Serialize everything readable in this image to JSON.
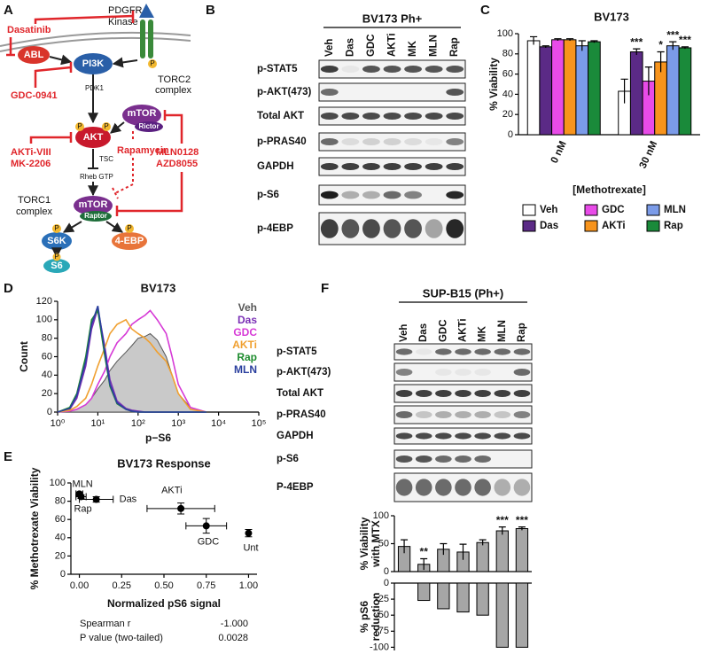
{
  "panel_labels": [
    "A",
    "B",
    "C",
    "D",
    "E",
    "F"
  ],
  "pathway": {
    "pdgfr": "PDGFR",
    "kinase": "Kinase",
    "dasatinib": "Dasatinib",
    "abl": "ABL",
    "pi3k": "PI3K",
    "gdc": "GDC-0941",
    "pdk1": "PDK1",
    "torc2": "TORC2",
    "torc2_complex": "complex",
    "mtor": "mTOR",
    "rictor": "Rictor",
    "akt": "AKT",
    "akti": "AKTi-VIII",
    "mk": "MK-2206",
    "tsc": "TSC",
    "rheb": "Rheb GTP",
    "rapamycin": "Rapamycin",
    "mln": "MLN0128",
    "azd": "AZD8055",
    "torc1": "TORC1",
    "torc1_complex": "complex",
    "raptor": "Raptor",
    "s6k": "S6K",
    "ebp": "4-EBP",
    "s6": "S6",
    "p": "P"
  },
  "blot_b": {
    "title": "BV173 Ph+",
    "lanes": [
      "Veh",
      "Das",
      "GDC",
      "AKTi",
      "MK",
      "MLN",
      "Rap"
    ],
    "rows": [
      "p-STAT5",
      "p-AKT(473)",
      "Total AKT",
      "p-PRAS40",
      "GAPDH",
      "p-S6",
      "p-4EBP"
    ]
  },
  "blot_f": {
    "title": "SUP-B15 (Ph+)",
    "lanes": [
      "Veh",
      "Das",
      "GDC",
      "AKTi",
      "MK",
      "MLN",
      "Rap"
    ],
    "rows": [
      "p-STAT5",
      "p-AKT(473)",
      "Total AKT",
      "p-PRAS40",
      "GAPDH",
      "p-S6",
      "P-4EBP"
    ]
  },
  "chart_data": [
    {
      "type": "bar",
      "title": "BV173",
      "y_label": "% Viability",
      "x_label": "[Methotrexate]",
      "categories": [
        "0 nM",
        "30 nM"
      ],
      "ylim": [
        0,
        100
      ],
      "yticks": [
        0,
        20,
        40,
        60,
        80,
        100
      ],
      "series": [
        {
          "name": "Veh",
          "color": "#ffffff",
          "values": [
            93,
            43
          ],
          "errors": [
            4,
            12
          ],
          "stars": [
            null,
            null
          ]
        },
        {
          "name": "Das",
          "color": "#5b2a86",
          "values": [
            87,
            82
          ],
          "errors": [
            1,
            3
          ],
          "stars": [
            null,
            "***"
          ]
        },
        {
          "name": "GDC",
          "color": "#e84be8",
          "values": [
            94,
            53
          ],
          "errors": [
            1,
            14
          ],
          "stars": [
            null,
            null
          ]
        },
        {
          "name": "AKTi",
          "color": "#f7941d",
          "values": [
            94,
            72
          ],
          "errors": [
            1,
            10
          ],
          "stars": [
            null,
            "*"
          ]
        },
        {
          "name": "MLN",
          "color": "#7b9be8",
          "values": [
            88,
            88
          ],
          "errors": [
            5,
            4
          ],
          "stars": [
            null,
            "***"
          ]
        },
        {
          "name": "Rap",
          "color": "#1a8a3a",
          "values": [
            92,
            86
          ],
          "errors": [
            1,
            1
          ],
          "stars": [
            null,
            "***"
          ]
        }
      ]
    },
    {
      "type": "histogram-overlay",
      "title": "BV173",
      "x_label": "p−S6",
      "y_label": "Count",
      "xscale": "log",
      "x": [
        1,
        2,
        3,
        5,
        7,
        10,
        15,
        20,
        30,
        50,
        70,
        100,
        150,
        200,
        300,
        500,
        700,
        1000,
        2000,
        5000
      ],
      "xlim": [
        1,
        100000
      ],
      "xticks": [
        {
          "value": 1,
          "label": "10⁰"
        },
        {
          "value": 10,
          "label": "10¹"
        },
        {
          "value": 100,
          "label": "10²"
        },
        {
          "value": 1000,
          "label": "10³"
        },
        {
          "value": 10000,
          "label": "10⁴"
        },
        {
          "value": 100000,
          "label": "10⁵"
        }
      ],
      "ylim": [
        0,
        120
      ],
      "yticks": [
        0,
        20,
        40,
        60,
        80,
        100,
        120
      ],
      "series": [
        {
          "name": "Veh",
          "color": "#555555",
          "filled": true,
          "values": [
            0,
            1,
            3,
            8,
            15,
            25,
            35,
            45,
            55,
            65,
            72,
            80,
            82,
            85,
            78,
            60,
            40,
            20,
            5,
            0
          ]
        },
        {
          "name": "Das",
          "color": "#7a2fb5",
          "values": [
            0,
            3,
            15,
            50,
            90,
            112,
            70,
            35,
            12,
            4,
            2,
            1,
            0,
            0,
            0,
            0,
            0,
            0,
            0,
            0
          ]
        },
        {
          "name": "GDC",
          "color": "#d63ad6",
          "values": [
            0,
            1,
            3,
            8,
            15,
            30,
            45,
            60,
            75,
            85,
            95,
            100,
            105,
            110,
            100,
            85,
            60,
            30,
            5,
            0
          ]
        },
        {
          "name": "AKTi",
          "color": "#f0a030",
          "values": [
            0,
            2,
            6,
            15,
            30,
            50,
            70,
            85,
            95,
            100,
            90,
            85,
            80,
            75,
            65,
            55,
            40,
            20,
            3,
            0
          ]
        },
        {
          "name": "Rap",
          "color": "#1e8c2e",
          "values": [
            0,
            5,
            20,
            60,
            100,
            110,
            60,
            28,
            9,
            3,
            1,
            0,
            0,
            0,
            0,
            0,
            0,
            0,
            0,
            0
          ]
        },
        {
          "name": "MLN",
          "color": "#2a3f9e",
          "values": [
            0,
            4,
            18,
            55,
            95,
            115,
            65,
            30,
            10,
            3,
            1,
            0,
            0,
            0,
            0,
            0,
            0,
            0,
            0,
            0
          ]
        }
      ]
    },
    {
      "type": "scatter",
      "title": "BV173 Response",
      "x_label": "Normalized pS6 signal",
      "y_label": "% Methotrexate Viability",
      "xlim": [
        -0.05,
        1.05
      ],
      "xticks": [
        {
          "value": 0,
          "label": "0.00"
        },
        {
          "value": 0.25,
          "label": "0.25"
        },
        {
          "value": 0.5,
          "label": "0.50"
        },
        {
          "value": 0.75,
          "label": "0.75"
        },
        {
          "value": 1,
          "label": "1.00"
        }
      ],
      "ylim": [
        0,
        100
      ],
      "yticks": [
        0,
        20,
        40,
        60,
        80,
        100
      ],
      "points": [
        {
          "label": "MLN",
          "x": 0.0,
          "y": 88,
          "xerr": 0.02,
          "yerr": 2
        },
        {
          "label": "Rap",
          "x": 0.01,
          "y": 85,
          "xerr": 0.03,
          "yerr": 2
        },
        {
          "label": "Das",
          "x": 0.1,
          "y": 82,
          "xerr": 0.1,
          "yerr": 3
        },
        {
          "label": "AKTi",
          "x": 0.6,
          "y": 72,
          "xerr": 0.2,
          "yerr": 6
        },
        {
          "label": "GDC",
          "x": 0.75,
          "y": 53,
          "xerr": 0.12,
          "yerr": 8
        },
        {
          "label": "Unt",
          "x": 1.0,
          "y": 45,
          "yerr": 4
        }
      ],
      "stats": [
        [
          "Spearman r",
          "-1.000"
        ],
        [
          "P value (two-tailed)",
          "0.0028"
        ]
      ]
    },
    {
      "type": "bar",
      "y_label": [
        "% Viability",
        "with MTX"
      ],
      "color": "#a6a6a6",
      "categories": [
        null,
        null,
        null,
        null,
        null,
        null,
        null
      ],
      "values": [
        45,
        13,
        40,
        35,
        52,
        73,
        77
      ],
      "errors": [
        12,
        10,
        10,
        14,
        5,
        7,
        3
      ],
      "stars": [
        null,
        "**",
        null,
        null,
        null,
        "***",
        "***"
      ],
      "ylim": [
        0,
        100
      ],
      "yticks": [
        0,
        50,
        100
      ]
    },
    {
      "type": "bar",
      "y_label": [
        "% pS6",
        "reduction"
      ],
      "color": "#a6a6a6",
      "categories": [
        null,
        null,
        null,
        null,
        null,
        null,
        null
      ],
      "values": [
        0,
        -27,
        -40,
        -45,
        -50,
        -100,
        -100
      ],
      "ylim": [
        -105,
        0
      ],
      "yticks": [
        0,
        -25,
        -50,
        -75,
        -100
      ]
    }
  ]
}
